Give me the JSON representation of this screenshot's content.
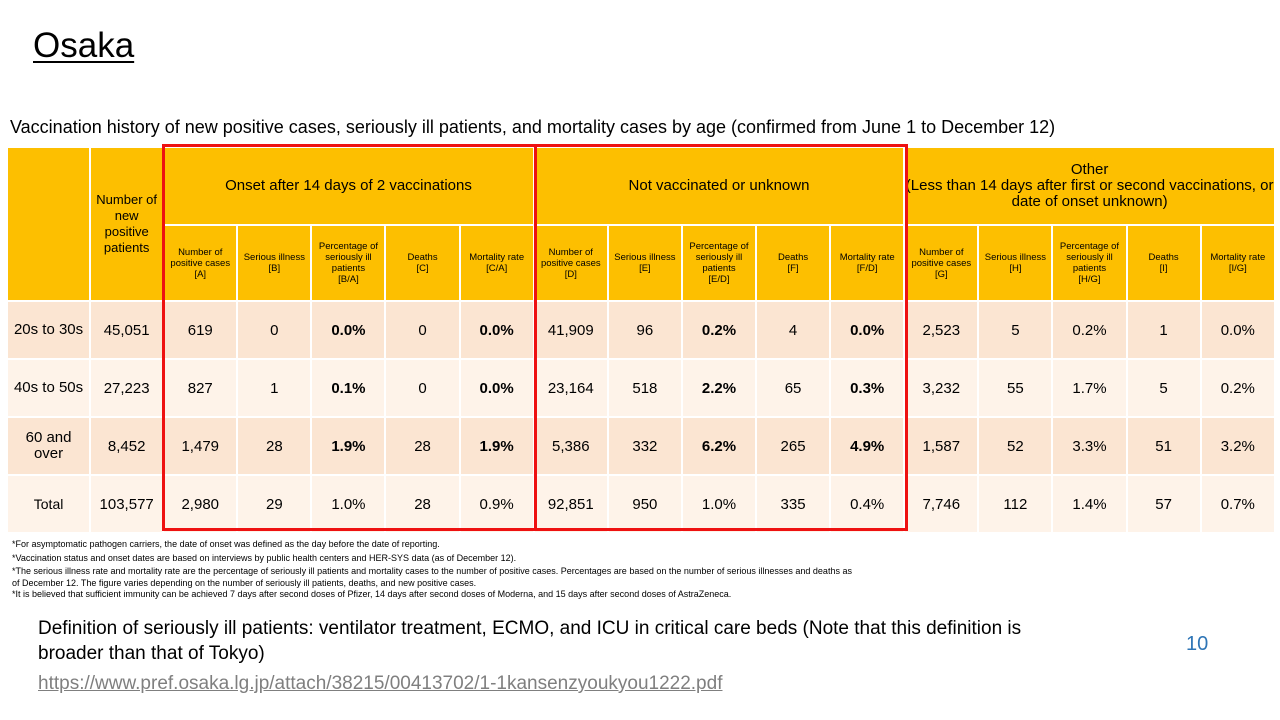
{
  "title": "Osaka",
  "subtitle": "Vaccination history of new positive cases, seriously ill patients, and mortality cases by age (confirmed from June 1 to December 12)",
  "table": {
    "col_total_header": "Number of new positive patients",
    "groups": [
      "Onset after 14 days of 2 vaccinations",
      "Not vaccinated or unknown",
      "Other\n(Less than 14 days after first or second vaccinations, or date of onset unknown)"
    ],
    "sub_headers": [
      [
        "Number of positive cases\n[A]",
        "Serious illness\n[B]",
        "Percentage of seriously ill patients\n[B/A]",
        "Deaths\n[C]",
        "Mortality rate\n[C/A]"
      ],
      [
        "Number of positive cases\n[D]",
        "Serious illness\n[E]",
        "Percentage of seriously ill patients\n[E/D]",
        "Deaths\n[F]",
        "Mortality rate\n[F/D]"
      ],
      [
        "Number of positive cases\n[G]",
        "Serious illness\n[H]",
        "Percentage of seriously ill patients\n[H/G]",
        "Deaths\n[I]",
        "Mortality rate\n[I/G]"
      ]
    ],
    "rows": [
      {
        "label": "20s to 30s",
        "total": "45,051",
        "values": [
          "619",
          "0",
          "0.0%",
          "0",
          "0.0%",
          "41,909",
          "96",
          "0.2%",
          "4",
          "0.0%",
          "2,523",
          "5",
          "0.2%",
          "1",
          "0.0%"
        ]
      },
      {
        "label": "40s to 50s",
        "total": "27,223",
        "values": [
          "827",
          "1",
          "0.1%",
          "0",
          "0.0%",
          "23,164",
          "518",
          "2.2%",
          "65",
          "0.3%",
          "3,232",
          "55",
          "1.7%",
          "5",
          "0.2%"
        ]
      },
      {
        "label": "60 and\nover",
        "total": "8,452",
        "values": [
          "1,479",
          "28",
          "1.9%",
          "28",
          "1.9%",
          "5,386",
          "332",
          "6.2%",
          "265",
          "4.9%",
          "1,587",
          "52",
          "3.3%",
          "51",
          "3.2%"
        ]
      },
      {
        "label": "Total",
        "total": "103,577",
        "values": [
          "2,980",
          "29",
          "1.0%",
          "28",
          "0.9%",
          "92,851",
          "950",
          "1.0%",
          "335",
          "0.4%",
          "7,746",
          "112",
          "1.4%",
          "57",
          "0.7%"
        ]
      }
    ]
  },
  "notes": [
    "*For asymptomatic pathogen carriers, the date of onset was defined as the day before the date of reporting.",
    "*Vaccination status and onset dates are based on interviews by public health centers and HER-SYS data (as of December 12).",
    "*The serious illness rate and mortality rate are the percentage of seriously ill patients and mortality cases to the number of positive cases. Percentages are based on the number of serious illnesses and deaths as of December 12. The figure varies depending on the number of seriously ill patients, deaths, and new positive cases.",
    "*It is believed that sufficient immunity can be achieved 7 days after second doses of Pfizer, 14 days after second doses of Moderna, and 15 days after second doses of AstraZeneca."
  ],
  "definition": "Definition of seriously ill patients: ventilator treatment, ECMO, and ICU in critical care beds (Note that this definition is broader than that of Tokyo)",
  "source_url": "https://www.pref.osaka.lg.jp/attach/38215/00413702/1-1kansenzyoukyou1222.pdf",
  "page_number": "10",
  "colors": {
    "header": "#fdbf00",
    "row_dark": "#fbe5d2",
    "row_light": "#fef3e9",
    "highlight_box": "#ee1111",
    "page_number": "#2e75b6"
  }
}
